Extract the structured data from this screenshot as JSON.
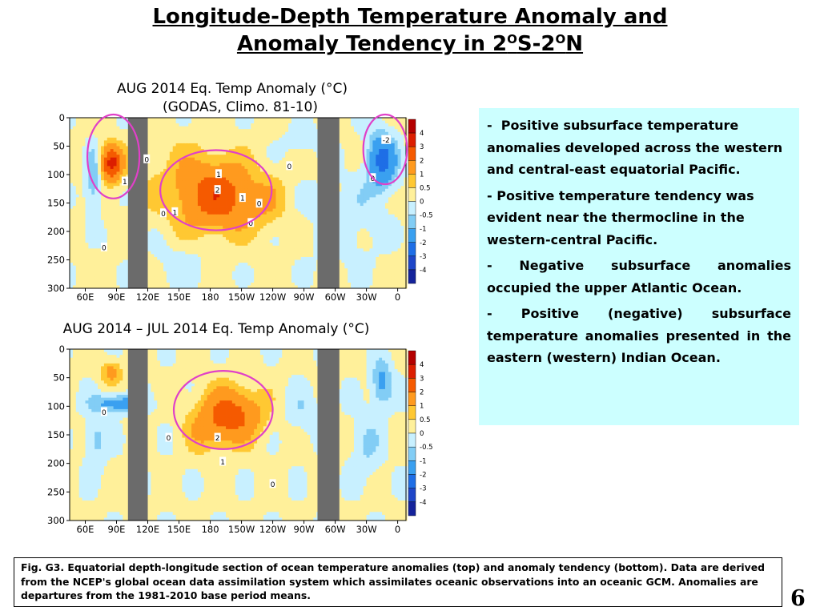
{
  "slide": {
    "title_line1": "Longitude-Depth Temperature Anomaly and",
    "title_line2_prefix": "Anomaly Tendency in 2",
    "title_sup1": "O",
    "title_mid": "S-2",
    "title_sup2": "O",
    "title_suffix": "N",
    "page_number": "6"
  },
  "notes": [
    {
      "dash": "-",
      "text": "Positive subsurface temperature anomalies developed across the western and central-east equatorial Pacific."
    },
    {
      "dash": "-",
      "text": "Positive temperature tendency was evident near the thermocline in the western-central Pacific."
    },
    {
      "dash": "-",
      "text": "Negative subsurface anomalies occupied the upper Atlantic  Ocean."
    },
    {
      "dash": "-",
      "text": "Positive (negative) subsurface temperature anomalies presented in the eastern (western) Indian Ocean."
    }
  ],
  "caption": "Fig. G3. Equatorial depth-longitude section of ocean temperature anomalies (top) and anomaly tendency (bottom). Data are derived from the NCEP's global ocean data assimilation system which assimilates oceanic observations into an oceanic GCM. Anomalies are departures from the 1981-2010 base period means.",
  "colors": {
    "land": "#6b6b6b",
    "ellipse": "#e040c8",
    "notes_background": "#ccffff"
  },
  "chart_data": [
    {
      "type": "heatmap",
      "title_line1": "AUG 2014 Eq. Temp Anomaly (°C)",
      "title_line2": "(GODAS,  Climo. 81-10)",
      "x_tick_labels": [
        "60E",
        "90E",
        "120E",
        "150E",
        "180",
        "150W",
        "120W",
        "90W",
        "60W",
        "30W",
        "0"
      ],
      "x_tick_lon": [
        60,
        90,
        120,
        150,
        180,
        210,
        240,
        270,
        300,
        330,
        360
      ],
      "xlim": [
        45,
        368
      ],
      "y_tick_labels": [
        "0",
        "50",
        "100",
        "150",
        "200",
        "250",
        "300"
      ],
      "ylim": [
        0,
        300
      ],
      "y_reversed": true,
      "colorbar_levels": [
        "4",
        "3",
        "2",
        "1",
        "0.5",
        "0",
        "-0.5",
        "-1",
        "-2",
        "-3",
        "-4"
      ],
      "colorbar_colors": [
        "#b40000",
        "#dc1e00",
        "#f55a00",
        "#ff9a1e",
        "#ffc832",
        "#fff09a",
        "#c8f0ff",
        "#82cdf5",
        "#3aa0f0",
        "#1e6ee6",
        "#1e46c8",
        "#14239b"
      ],
      "land_masks_lon": [
        [
          101,
          120
        ],
        [
          283,
          304
        ]
      ],
      "contour_labels": [
        {
          "text": "0",
          "lon": 119,
          "depth": 73
        },
        {
          "text": "1",
          "lon": 98,
          "depth": 112
        },
        {
          "text": "0",
          "lon": 135,
          "depth": 168
        },
        {
          "text": "1",
          "lon": 146,
          "depth": 166
        },
        {
          "text": "1",
          "lon": 188,
          "depth": 99
        },
        {
          "text": "2",
          "lon": 187,
          "depth": 127
        },
        {
          "text": "1",
          "lon": 211,
          "depth": 141
        },
        {
          "text": "0",
          "lon": 227,
          "depth": 151
        },
        {
          "text": "0",
          "lon": 219,
          "depth": 185
        },
        {
          "text": "0",
          "lon": 256,
          "depth": 85
        },
        {
          "text": "0",
          "lon": 336,
          "depth": 106
        },
        {
          "text": "-2",
          "lon": 349,
          "depth": 39
        },
        {
          "text": "0",
          "lon": 78,
          "depth": 228
        }
      ],
      "highlight_regions": [
        {
          "lon": [
            62,
            112
          ],
          "depth": [
            0,
            142
          ]
        },
        {
          "lon": [
            132,
            239
          ],
          "depth": [
            57,
            198
          ]
        },
        {
          "lon": [
            327,
            369
          ],
          "depth": [
            0,
            117
          ]
        }
      ]
    },
    {
      "type": "heatmap",
      "title_line1": "AUG 2014 – JUL 2014 Eq. Temp Anomaly (°C)",
      "x_tick_labels": [
        "60E",
        "90E",
        "120E",
        "150E",
        "180",
        "150W",
        "120W",
        "90W",
        "60W",
        "30W",
        "0"
      ],
      "x_tick_lon": [
        60,
        90,
        120,
        150,
        180,
        210,
        240,
        270,
        300,
        330,
        360
      ],
      "xlim": [
        45,
        368
      ],
      "y_tick_labels": [
        "0",
        "50",
        "100",
        "150",
        "200",
        "250",
        "300"
      ],
      "ylim": [
        0,
        300
      ],
      "y_reversed": true,
      "colorbar_levels": [
        "4",
        "3",
        "2",
        "1",
        "0.5",
        "0",
        "-0.5",
        "-1",
        "-2",
        "-3",
        "-4"
      ],
      "colorbar_colors": [
        "#b40000",
        "#dc1e00",
        "#f55a00",
        "#ff9a1e",
        "#ffc832",
        "#fff09a",
        "#c8f0ff",
        "#82cdf5",
        "#3aa0f0",
        "#1e6ee6",
        "#1e46c8",
        "#14239b"
      ],
      "land_masks_lon": [
        [
          101,
          120
        ],
        [
          283,
          304
        ]
      ],
      "contour_labels": [
        {
          "text": "0",
          "lon": 78,
          "depth": 110
        },
        {
          "text": "0",
          "lon": 140,
          "depth": 155
        },
        {
          "text": "2",
          "lon": 187,
          "depth": 155
        },
        {
          "text": "1",
          "lon": 192,
          "depth": 197
        },
        {
          "text": "0",
          "lon": 240,
          "depth": 236
        }
      ],
      "highlight_regions": [
        {
          "lon": [
            145,
            240
          ],
          "depth": [
            38,
            175
          ]
        }
      ]
    }
  ]
}
